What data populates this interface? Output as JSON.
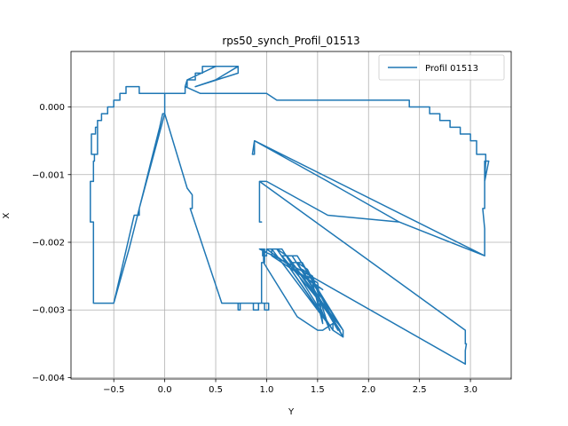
{
  "chart_data": {
    "type": "line",
    "title": "rps50_synch_Profil_01513",
    "xlabel": "Y",
    "ylabel": "X",
    "xlim": [
      -0.92,
      3.4
    ],
    "ylim": [
      -0.00402,
      0.00082
    ],
    "x_ticks": [
      -0.5,
      0.0,
      0.5,
      1.0,
      1.5,
      2.0,
      2.5,
      3.0
    ],
    "x_tick_labels": [
      "−0.5",
      "0.0",
      "0.5",
      "1.0",
      "1.5",
      "2.0",
      "2.5",
      "3.0"
    ],
    "y_ticks": [
      0.0,
      -0.001,
      -0.002,
      -0.003,
      -0.004
    ],
    "y_tick_labels": [
      "0.000",
      "−0.001",
      "−0.002",
      "−0.003",
      "−0.004"
    ],
    "grid": true,
    "legend_position": "top-right",
    "series": [
      {
        "name": "Profil 01513",
        "color": "#1f77b4",
        "x": [
          0.0,
          0.0,
          0.0,
          0.0,
          -0.25,
          -0.25,
          -0.3,
          -0.3,
          -0.5,
          -0.5,
          -0.7,
          -0.7,
          -0.73,
          -0.73,
          -0.7,
          -0.7,
          -0.69,
          -0.69,
          -0.72,
          -0.72,
          -0.68,
          -0.68,
          -0.66,
          -0.66,
          -0.69,
          -0.66,
          -0.66,
          -0.62,
          -0.62,
          -0.56,
          -0.56,
          -0.5,
          -0.5,
          -0.44,
          -0.44,
          -0.38,
          -0.38,
          -0.3,
          -0.3,
          -0.25,
          -0.25,
          -0.05,
          -0.05,
          0.2,
          0.2,
          0.22,
          0.22,
          0.3,
          0.3,
          0.37,
          0.37,
          0.5,
          0.5,
          0.72,
          0.72,
          0.3,
          0.3,
          0.5,
          0.5,
          0.72,
          0.5,
          0.22,
          0.22,
          0.2,
          0.2,
          0.35,
          0.35,
          0.72,
          0.72,
          1.0,
          1.1,
          1.6,
          2.2,
          2.2,
          2.4,
          2.4,
          2.6,
          2.6,
          2.7,
          2.7,
          2.8,
          2.8,
          2.9,
          2.9,
          3.0,
          3.0,
          3.06,
          3.06,
          3.15,
          3.15,
          3.14,
          3.18,
          3.14,
          3.14,
          3.12,
          3.14,
          3.14,
          0.88,
          0.88,
          0.86,
          0.88,
          1.6,
          2.3,
          3.14,
          2.3,
          1.6,
          1.0,
          0.93,
          0.93,
          0.95,
          0.93,
          0.93,
          2.95,
          2.95,
          2.96,
          2.95,
          2.95,
          1.2,
          0.93,
          0.96,
          0.96,
          1.0,
          1.0,
          1.05,
          1.05,
          1.55,
          1.0,
          1.1,
          1.6,
          1.05,
          1.15,
          1.65,
          1.1,
          1.2,
          1.7,
          1.15,
          1.25,
          1.72,
          1.2,
          1.3,
          1.75,
          1.25,
          1.35,
          1.75,
          1.3,
          1.4,
          1.7,
          1.35,
          1.45,
          1.62,
          1.4,
          1.5,
          1.55,
          1.45,
          1.75,
          1.75,
          1.65,
          1.65,
          1.55,
          1.5,
          1.3,
          0.97,
          0.97,
          0.98,
          0.98,
          0.95,
          0.95,
          0.92,
          0.92,
          0.87,
          0.87,
          1.02,
          1.02,
          0.98,
          0.98,
          0.72,
          0.72,
          0.74,
          0.74,
          0.56,
          0.56,
          0.25,
          0.27,
          0.27,
          0.22,
          0.0,
          0.0,
          -0.02,
          -0.05,
          -0.1,
          -0.15,
          -0.2,
          -0.25,
          -0.3,
          -0.35,
          -0.5,
          -0.5,
          -0.7,
          -0.7,
          -0.5,
          -0.5,
          -0.7
        ],
        "y": [
          -0.0001,
          0.0,
          0.0002,
          -0.0001,
          -0.0015,
          -0.0016,
          -0.0016,
          -0.0016,
          -0.0029,
          -0.0029,
          -0.0029,
          -0.0017,
          -0.0017,
          -0.0011,
          -0.0011,
          -0.0008,
          -0.0008,
          -0.0007,
          -0.0007,
          -0.0004,
          -0.0004,
          -0.0003,
          -0.0003,
          -0.0007,
          -0.0007,
          -0.0007,
          -0.0002,
          -0.0002,
          -0.0001,
          -0.0001,
          0.0,
          0.0,
          0.0001,
          0.0001,
          0.0002,
          0.0002,
          0.0003,
          0.0003,
          0.0003,
          0.0003,
          0.0002,
          0.0002,
          0.0002,
          0.0002,
          0.0003,
          0.0003,
          0.0004,
          0.0004,
          0.0005,
          0.0005,
          0.0006,
          0.0006,
          0.0006,
          0.0006,
          0.0005,
          0.0003,
          0.0003,
          0.0004,
          0.0004,
          0.0006,
          0.0006,
          0.0004,
          0.0004,
          0.0003,
          0.0003,
          0.0002,
          0.0002,
          0.0002,
          0.0002,
          0.0002,
          0.0001,
          0.0001,
          0.0001,
          0.0001,
          0.0001,
          0.0,
          0.0,
          -0.0001,
          -0.0001,
          -0.0002,
          -0.0002,
          -0.0003,
          -0.0003,
          -0.0004,
          -0.0004,
          -0.0005,
          -0.0005,
          -0.0007,
          -0.0007,
          -0.0008,
          -0.0011,
          -0.0008,
          -0.0008,
          -0.0015,
          -0.0015,
          -0.0018,
          -0.0022,
          -0.0005,
          -0.0007,
          -0.0007,
          -0.0005,
          -0.0011,
          -0.0017,
          -0.0022,
          -0.0017,
          -0.0016,
          -0.0011,
          -0.0011,
          -0.0017,
          -0.0017,
          -0.0017,
          -0.0011,
          -0.0033,
          -0.0035,
          -0.0035,
          -0.0036,
          -0.0038,
          -0.0023,
          -0.0021,
          -0.0021,
          -0.0022,
          -0.0022,
          -0.0021,
          -0.0021,
          -0.0022,
          -0.0027,
          -0.0021,
          -0.0021,
          -0.0032,
          -0.0021,
          -0.0021,
          -0.0033,
          -0.0021,
          -0.0022,
          -0.0032,
          -0.0022,
          -0.0022,
          -0.0033,
          -0.0022,
          -0.0022,
          -0.0033,
          -0.0023,
          -0.0023,
          -0.0034,
          -0.0023,
          -0.0024,
          -0.0033,
          -0.0024,
          -0.0025,
          -0.0033,
          -0.0025,
          -0.0026,
          -0.0032,
          -0.0026,
          -0.0033,
          -0.0034,
          -0.0033,
          -0.0032,
          -0.0033,
          -0.0033,
          -0.0031,
          -0.0023,
          -0.0021,
          -0.0021,
          -0.0023,
          -0.0023,
          -0.0029,
          -0.0029,
          -0.003,
          -0.003,
          -0.0029,
          -0.0029,
          -0.003,
          -0.003,
          -0.0029,
          -0.0029,
          -0.003,
          -0.003,
          -0.0029,
          -0.0029,
          -0.0029,
          -0.0015,
          -0.0015,
          -0.0013,
          -0.0012,
          -0.0001,
          -0.0001,
          -0.0001,
          -0.0003,
          -0.0006,
          -0.0009,
          -0.0012,
          -0.0015,
          -0.0018,
          -0.0021,
          -0.0029,
          -0.0029,
          -0.0029,
          -0.0029,
          -0.0029,
          -0.0029,
          -0.0029
        ]
      }
    ]
  }
}
